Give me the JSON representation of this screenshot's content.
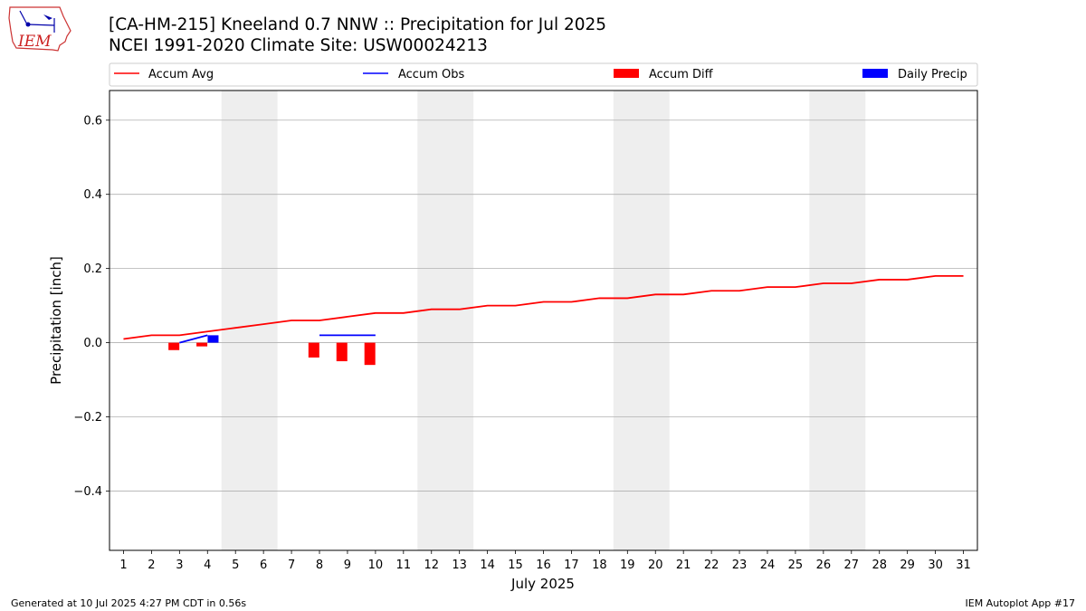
{
  "header": {
    "title_line1": "[CA-HM-215] Kneeland 0.7 NNW :: Precipitation for Jul 2025",
    "title_line2": "NCEI 1991-2020 Climate Site: USW00024213",
    "logo_text": "IEM"
  },
  "footer": {
    "left": "Generated at 10 Jul 2025 4:27 PM CDT in 0.56s",
    "right": "IEM Autoplot App #17"
  },
  "colors": {
    "accum_avg": "#ff0000",
    "accum_obs": "#0000ff",
    "accum_diff": "#ff0000",
    "daily_precip": "#0000ff",
    "weekend_band": "#eeeeee",
    "grid": "#b0b0b0"
  },
  "chart_data": {
    "type": "line",
    "xlabel": "July 2025",
    "ylabel": "Precipitation [inch]",
    "ylim": [
      -0.56,
      0.68
    ],
    "xlim": [
      0.5,
      31.5
    ],
    "grid": "horizontal",
    "legend_position": "top",
    "x": [
      1,
      2,
      3,
      4,
      5,
      6,
      7,
      8,
      9,
      10,
      11,
      12,
      13,
      14,
      15,
      16,
      17,
      18,
      19,
      20,
      21,
      22,
      23,
      24,
      25,
      26,
      27,
      28,
      29,
      30,
      31
    ],
    "x_tick_labels": [
      "1",
      "2",
      "3",
      "4",
      "5",
      "6",
      "7",
      "8",
      "9",
      "10",
      "11",
      "12",
      "13",
      "14",
      "15",
      "16",
      "17",
      "18",
      "19",
      "20",
      "21",
      "22",
      "23",
      "24",
      "25",
      "26",
      "27",
      "28",
      "29",
      "30",
      "31"
    ],
    "y_ticks": [
      -0.4,
      -0.2,
      0.0,
      0.2,
      0.4,
      0.6
    ],
    "y_tick_labels": [
      "−0.4",
      "−0.2",
      "0.0",
      "0.2",
      "0.4",
      "0.6"
    ],
    "weekend_bands": [
      [
        4.5,
        6.5
      ],
      [
        11.5,
        13.5
      ],
      [
        18.5,
        20.5
      ],
      [
        25.5,
        27.5
      ]
    ],
    "series": [
      {
        "name": "Accum Avg",
        "kind": "line",
        "x": [
          1,
          2,
          3,
          4,
          5,
          6,
          7,
          8,
          9,
          10,
          11,
          12,
          13,
          14,
          15,
          16,
          17,
          18,
          19,
          20,
          21,
          22,
          23,
          24,
          25,
          26,
          27,
          28,
          29,
          30,
          31
        ],
        "values": [
          0.01,
          0.02,
          0.02,
          0.03,
          0.04,
          0.05,
          0.06,
          0.06,
          0.07,
          0.08,
          0.08,
          0.09,
          0.09,
          0.1,
          0.1,
          0.11,
          0.11,
          0.12,
          0.12,
          0.13,
          0.13,
          0.14,
          0.14,
          0.15,
          0.15,
          0.16,
          0.16,
          0.17,
          0.17,
          0.18,
          0.18
        ]
      },
      {
        "name": "Accum Obs",
        "kind": "line",
        "segments": [
          {
            "x": [
              3,
              4
            ],
            "values": [
              0.0,
              0.02
            ]
          },
          {
            "x": [
              8,
              9,
              10
            ],
            "values": [
              0.02,
              0.02,
              0.02
            ]
          }
        ]
      },
      {
        "name": "Accum Diff",
        "kind": "bar",
        "x": [
          3,
          4,
          8,
          9,
          10
        ],
        "values": [
          -0.02,
          -0.01,
          -0.04,
          -0.05,
          -0.06
        ]
      },
      {
        "name": "Daily Precip",
        "kind": "bar",
        "x": [
          4
        ],
        "values": [
          0.02
        ]
      }
    ]
  }
}
